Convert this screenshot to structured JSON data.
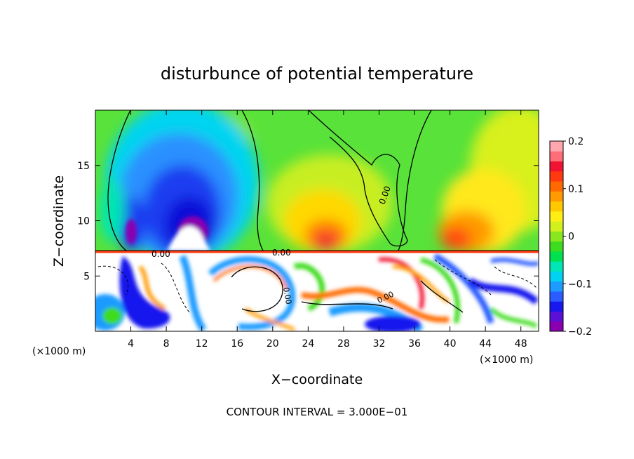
{
  "chart_data": {
    "type": "heatmap",
    "title": "disturbunce of potential temperature",
    "xlabel": "X−coordinate",
    "ylabel": "Z−coordinate",
    "x_unit_left": "(×1000 m)",
    "x_unit_right": "(×1000 m)",
    "footer": "CONTOUR INTERVAL = 3.000E−01",
    "xlim": [
      0,
      50
    ],
    "ylim": [
      0,
      20
    ],
    "x_ticks": [
      4,
      8,
      12,
      16,
      20,
      24,
      28,
      32,
      36,
      40,
      44,
      48
    ],
    "y_ticks": [
      5,
      10,
      15
    ],
    "colorbar": {
      "range": [
        -0.2,
        0.2
      ],
      "tick_values": [
        0.2,
        0.1,
        0,
        -0.1,
        -0.2
      ],
      "tick_labels": [
        "0.2",
        "0.1",
        "0",
        "−0.1",
        "−0.2"
      ],
      "colors": [
        "#8a00b0",
        "#5a10d6",
        "#1818ee",
        "#2a5cff",
        "#1e9bff",
        "#00d2f0",
        "#00e6b4",
        "#00e050",
        "#3ddc1e",
        "#8ae61e",
        "#d2f01e",
        "#ffee14",
        "#ffc800",
        "#ff9a00",
        "#ff6a00",
        "#ff3a10",
        "#f01432",
        "#ff6e78",
        "#ffa6ae"
      ]
    },
    "contour_labels": [
      "0.00",
      "0.00",
      "0.00",
      "0.00",
      "0.00"
    ],
    "grid": false
  }
}
